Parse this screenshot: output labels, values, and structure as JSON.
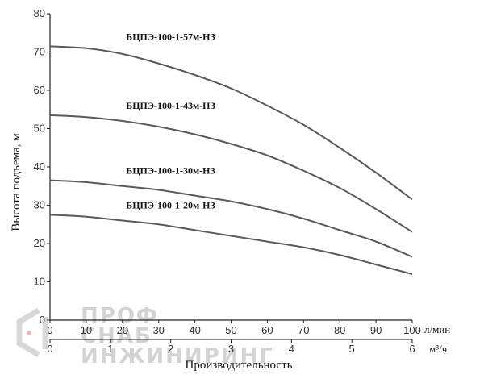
{
  "chart_data": {
    "type": "line",
    "title": "",
    "xlabel": "Производительность",
    "ylabel": "Высота подъема, м",
    "x_unit_primary": "л/мин",
    "x_unit_secondary": "м³/ч",
    "xlim": [
      0,
      100
    ],
    "ylim": [
      0,
      80
    ],
    "x_ticks": [
      0,
      10,
      20,
      30,
      40,
      50,
      60,
      70,
      80,
      90,
      100
    ],
    "x_ticks_secondary": [
      0,
      1,
      2,
      3,
      4,
      5,
      6
    ],
    "y_ticks": [
      0,
      10,
      20,
      30,
      40,
      50,
      60,
      70,
      80
    ],
    "grid": false,
    "legend": "inline labels",
    "series": [
      {
        "name": "БЦПЭ-100-1-57м-НЗ",
        "x": [
          0,
          10,
          20,
          30,
          40,
          50,
          60,
          70,
          80,
          90,
          100
        ],
        "values": [
          71.5,
          71,
          69.5,
          67,
          64,
          60.5,
          56,
          51,
          45,
          38.5,
          31.5
        ]
      },
      {
        "name": "БЦПЭ-100-1-43м-НЗ",
        "x": [
          0,
          10,
          20,
          30,
          40,
          50,
          60,
          70,
          80,
          90,
          100
        ],
        "values": [
          53.5,
          53,
          52,
          50.5,
          48.5,
          46,
          43,
          39,
          34.5,
          29,
          23
        ]
      },
      {
        "name": "БЦПЭ-100-1-30м-НЗ",
        "x": [
          0,
          10,
          20,
          30,
          40,
          50,
          60,
          70,
          80,
          90,
          100
        ],
        "values": [
          36.5,
          36,
          35,
          34,
          32.5,
          31,
          29,
          26.5,
          23.5,
          20.5,
          16.5
        ]
      },
      {
        "name": "БЦПЭ-100-1-20м-НЗ",
        "x": [
          0,
          10,
          20,
          30,
          40,
          50,
          60,
          70,
          80,
          90,
          100
        ],
        "values": [
          27.5,
          27,
          26,
          25,
          23.5,
          22,
          20.5,
          19,
          17,
          14.5,
          12
        ]
      }
    ]
  },
  "watermark": {
    "lines": [
      "ПРОФ",
      "СНАБ",
      "ИНЖИНИРИНГ"
    ],
    "color": "#d3d3d3"
  },
  "colors": {
    "curve": "#5a5a5a",
    "axis": "#222222"
  }
}
